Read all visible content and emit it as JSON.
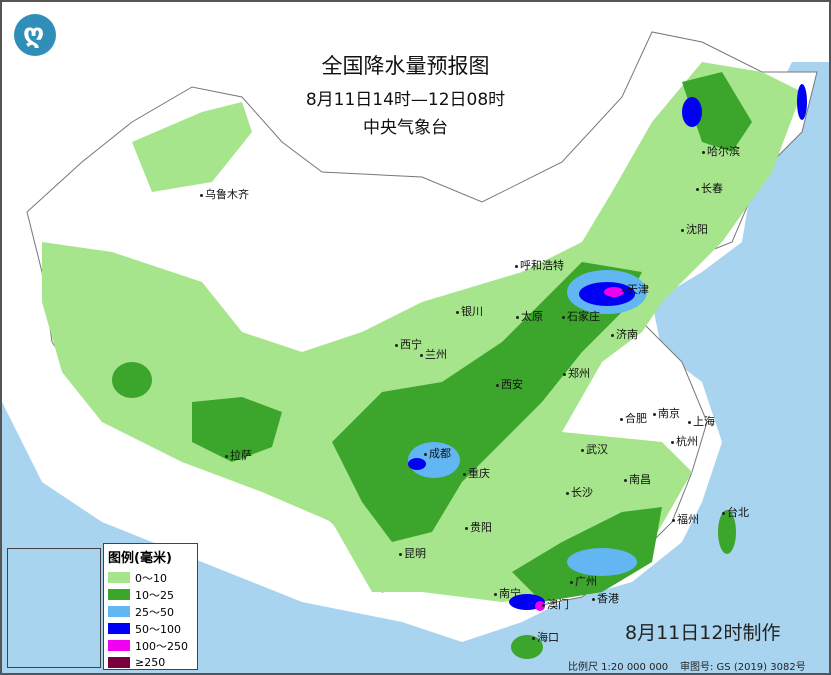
{
  "header": {
    "title": "全国降水量预报图",
    "period": "8月11日14时—12日08时",
    "issuer": "中央气象台"
  },
  "logo": {
    "icon": "cma-logo-icon",
    "glyph": "ღ"
  },
  "legend": {
    "title": "图例(毫米)",
    "items": [
      {
        "label": "0～10",
        "color": "#a6e58c"
      },
      {
        "label": "10～25",
        "color": "#3ca52c"
      },
      {
        "label": "25～50",
        "color": "#62b6f2"
      },
      {
        "label": "50～100",
        "color": "#0000f5"
      },
      {
        "label": "100～250",
        "color": "#f000f0"
      },
      {
        "label": "≥250",
        "color": "#7a0040"
      }
    ]
  },
  "cities": [
    "哈尔滨",
    "长春",
    "沈阳",
    "乌鲁木齐",
    "呼和浩特",
    "天津",
    "太原",
    "石家庄",
    "济南",
    "银川",
    "西宁",
    "兰州",
    "西安",
    "郑州",
    "合肥",
    "南京",
    "上海",
    "杭州",
    "武汉",
    "成都",
    "重庆",
    "拉萨",
    "长沙",
    "南昌",
    "福州",
    "台北",
    "贵阳",
    "昆明",
    "南宁",
    "广州",
    "澳门",
    "香港",
    "海口"
  ],
  "footer": {
    "made": "8月11日12时制作",
    "scale": "比例尺 1:20 000 000",
    "review": "审图号: GS (2019) 3082号"
  }
}
